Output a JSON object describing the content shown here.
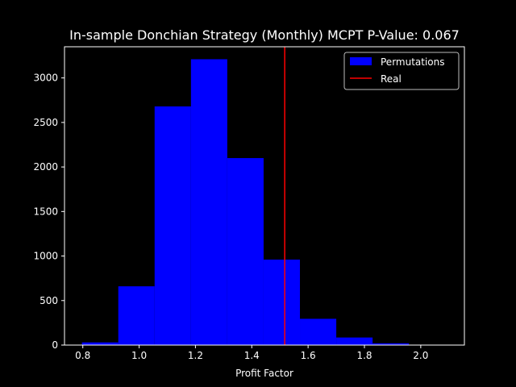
{
  "chart_data": {
    "type": "bar",
    "title": "In-sample Donchian Strategy (Monthly) MCPT P-Value: 0.067",
    "xlabel": "Profit Factor",
    "ylabel": "",
    "xlim": [
      0.735,
      2.155
    ],
    "ylim": [
      0,
      3350
    ],
    "xticks": [
      0.8,
      1.0,
      1.2,
      1.4,
      1.6,
      1.8,
      2.0
    ],
    "xtick_labels": [
      "0.8",
      "1.0",
      "1.2",
      "1.4",
      "1.6",
      "1.8",
      "2.0"
    ],
    "yticks": [
      0,
      500,
      1000,
      1500,
      2000,
      2500,
      3000
    ],
    "ytick_labels": [
      "0",
      "500",
      "1000",
      "1500",
      "2000",
      "2500",
      "3000"
    ],
    "bins": [
      {
        "x0": 0.797,
        "x1": 0.926,
        "count": 30
      },
      {
        "x0": 0.926,
        "x1": 1.055,
        "count": 660
      },
      {
        "x0": 1.055,
        "x1": 1.184,
        "count": 2680
      },
      {
        "x0": 1.184,
        "x1": 1.313,
        "count": 3210
      },
      {
        "x0": 1.313,
        "x1": 1.442,
        "count": 2100
      },
      {
        "x0": 1.442,
        "x1": 1.571,
        "count": 960
      },
      {
        "x0": 1.571,
        "x1": 1.7,
        "count": 295
      },
      {
        "x0": 1.7,
        "x1": 1.829,
        "count": 85
      },
      {
        "x0": 1.829,
        "x1": 1.958,
        "count": 20
      },
      {
        "x0": 1.958,
        "x1": 2.087,
        "count": 3
      }
    ],
    "real_value": 1.517,
    "grid": false,
    "legend_position": "top-right",
    "legend": [
      {
        "label": "Permutations",
        "kind": "patch",
        "color": "#0000ff"
      },
      {
        "label": "Real",
        "kind": "line",
        "color": "#ff0000"
      }
    ],
    "colors": {
      "background": "#000000",
      "bars": "#0000ff",
      "real_line": "#ff0000",
      "axes": "#ffffff"
    }
  }
}
